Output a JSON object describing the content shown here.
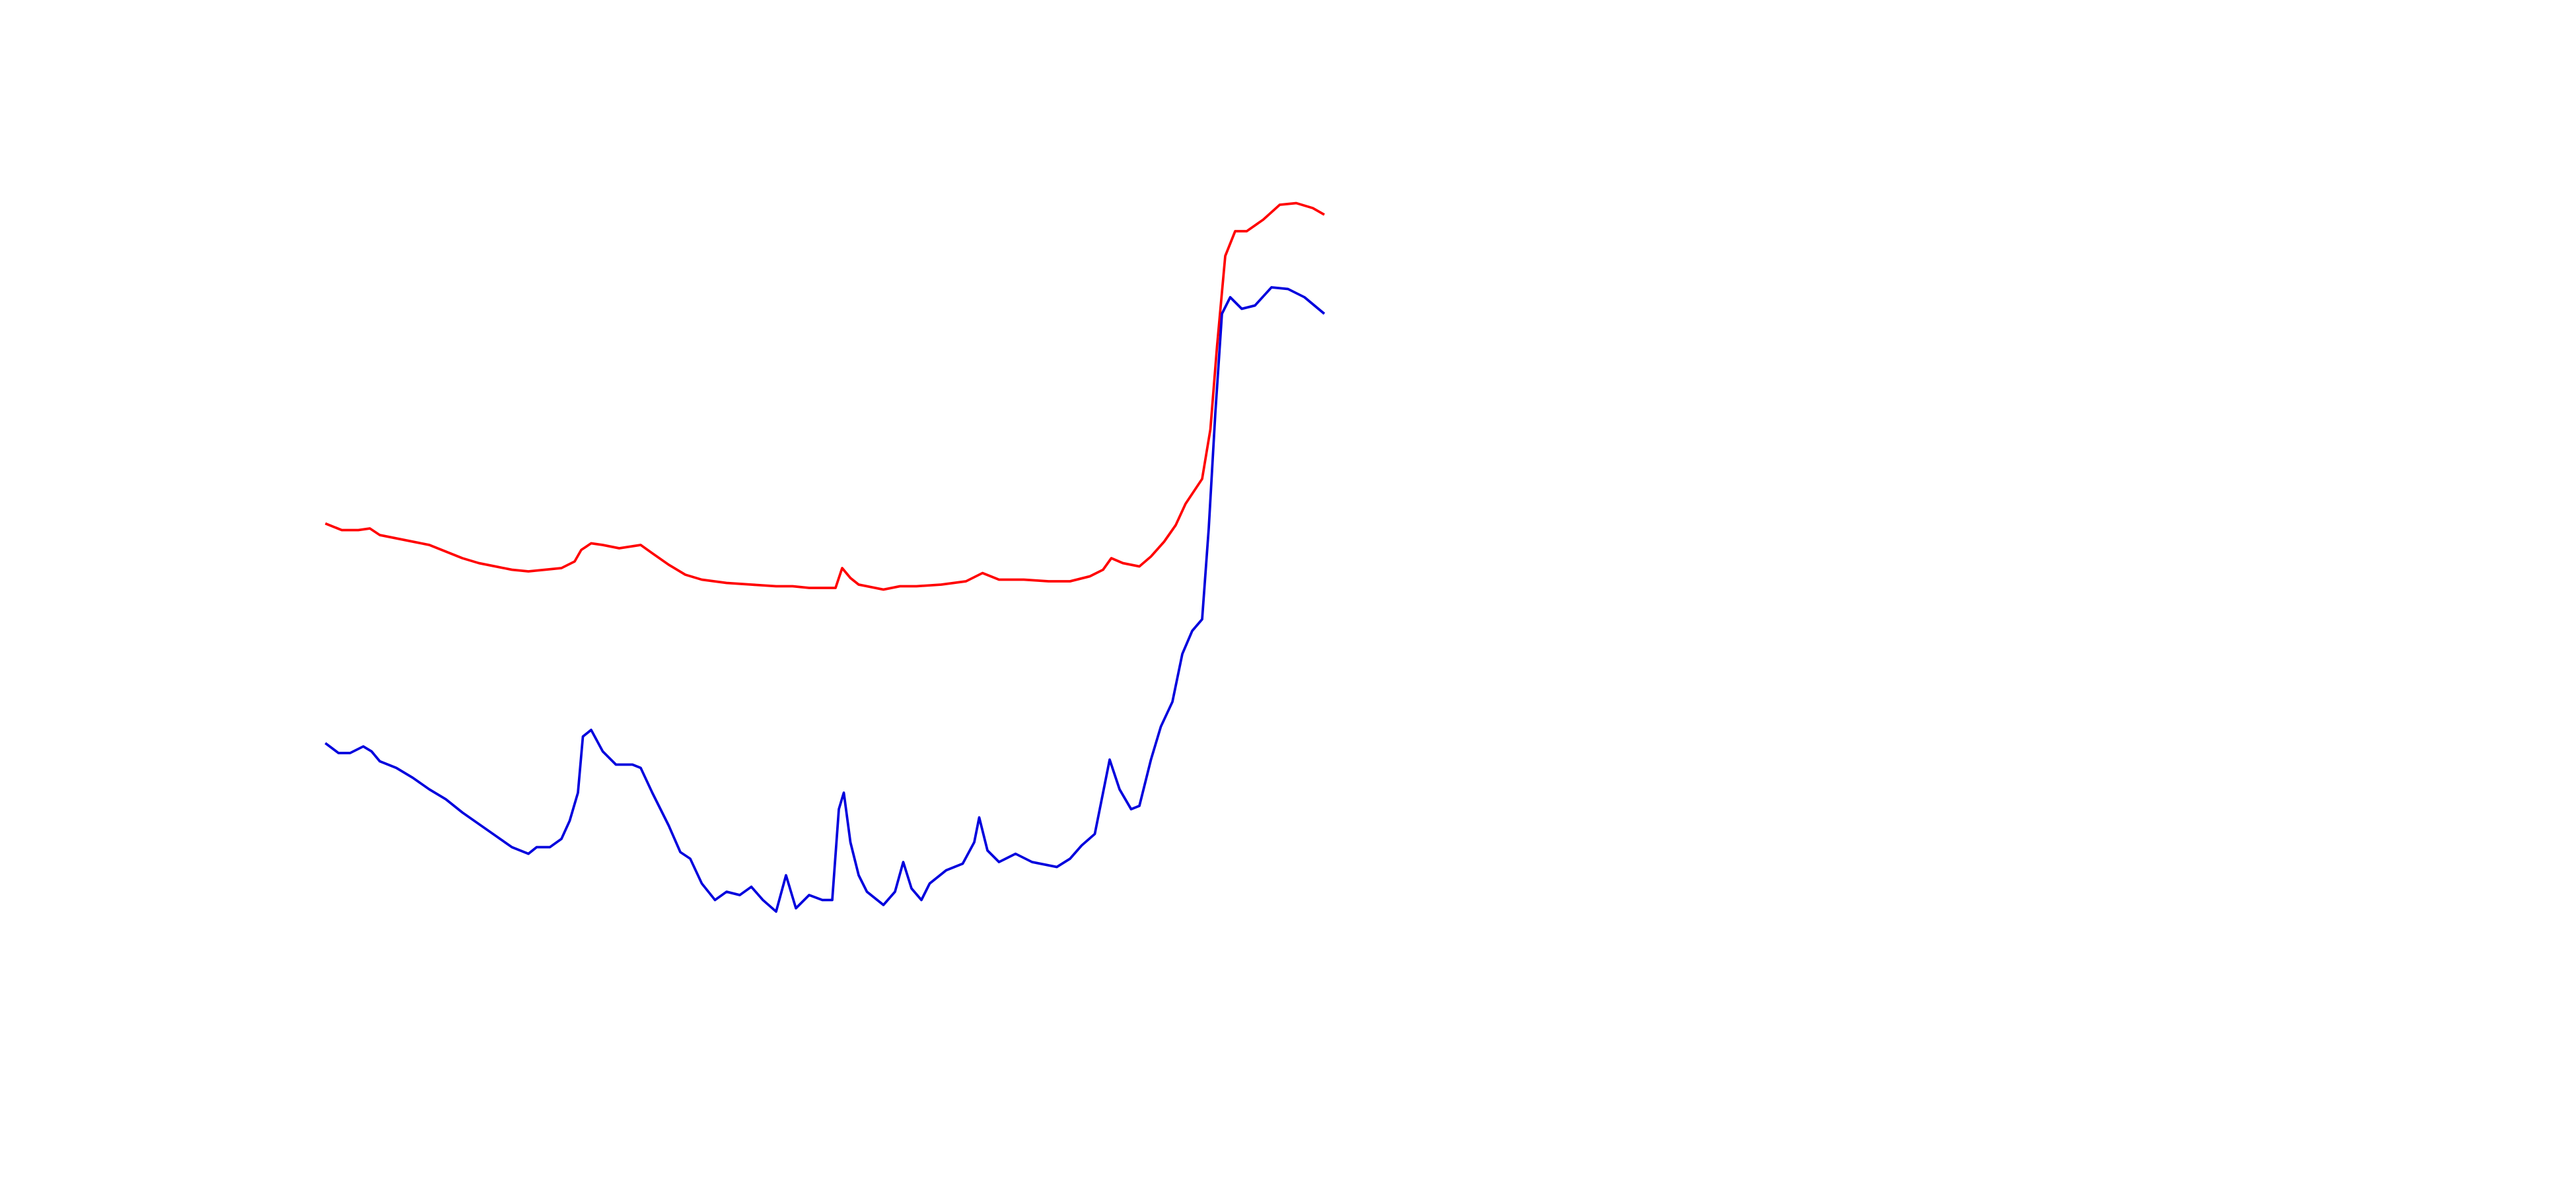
{
  "chart_data": {
    "type": "line",
    "xlim": [
      0,
      1560
    ],
    "ylim": [
      0,
      720
    ],
    "series": [
      {
        "color": "#ff0000",
        "x": [
          197,
          207,
          217,
          224,
          230,
          240,
          250,
          260,
          270,
          280,
          290,
          300,
          310,
          320,
          330,
          340,
          348,
          352,
          358,
          365,
          375,
          388,
          395,
          405,
          415,
          425,
          440,
          455,
          470,
          480,
          490,
          500,
          506,
          510,
          515,
          520,
          535,
          545,
          555,
          570,
          585,
          595,
          605,
          620,
          635,
          648,
          660,
          668,
          673,
          680,
          690,
          697,
          705,
          712,
          718,
          728,
          733,
          737,
          742,
          748,
          755,
          765,
          775,
          785,
          795,
          802
        ],
        "values": [
          403,
          399,
          399,
          400,
          396,
          394,
          392,
          390,
          386,
          382,
          379,
          377,
          375,
          374,
          375,
          376,
          380,
          387,
          391,
          390,
          388,
          390,
          385,
          378,
          372,
          369,
          367,
          366,
          365,
          365,
          364,
          364,
          364,
          376,
          370,
          366,
          363,
          365,
          365,
          366,
          368,
          373,
          369,
          369,
          368,
          368,
          371,
          375,
          382,
          379,
          377,
          383,
          392,
          402,
          415,
          430,
          460,
          510,
          565,
          580,
          580,
          587,
          596,
          597,
          594,
          590
        ]
      },
      {
        "color": "#0000dd",
        "x": [
          197,
          205,
          212,
          220,
          225,
          230,
          240,
          250,
          260,
          270,
          280,
          290,
          300,
          310,
          320,
          325,
          333,
          340,
          345,
          350,
          353,
          358,
          365,
          373,
          383,
          388,
          395,
          405,
          412,
          418,
          425,
          433,
          440,
          448,
          455,
          462,
          470,
          476,
          482,
          490,
          498,
          504,
          508,
          511,
          515,
          520,
          525,
          535,
          542,
          547,
          552,
          558,
          563,
          573,
          583,
          590,
          593,
          598,
          605,
          615,
          625,
          640,
          648,
          655,
          663,
          668,
          672,
          678,
          685,
          690,
          697,
          703,
          710,
          716,
          722,
          728,
          732,
          736,
          740,
          745,
          752,
          760,
          770,
          780,
          790,
          802
        ],
        "values": [
          270,
          264,
          264,
          268,
          265,
          259,
          255,
          249,
          242,
          236,
          228,
          221,
          214,
          207,
          203,
          207,
          207,
          212,
          223,
          240,
          274,
          278,
          265,
          257,
          257,
          255,
          240,
          220,
          204,
          200,
          185,
          175,
          180,
          178,
          183,
          175,
          168,
          190,
          170,
          178,
          175,
          175,
          230,
          240,
          210,
          190,
          180,
          172,
          180,
          198,
          182,
          175,
          185,
          193,
          197,
          210,
          225,
          205,
          198,
          203,
          198,
          195,
          200,
          208,
          215,
          240,
          260,
          242,
          230,
          232,
          260,
          280,
          295,
          324,
          338,
          345,
          400,
          470,
          530,
          540,
          533,
          535,
          546,
          545,
          540,
          530
        ]
      }
    ]
  }
}
